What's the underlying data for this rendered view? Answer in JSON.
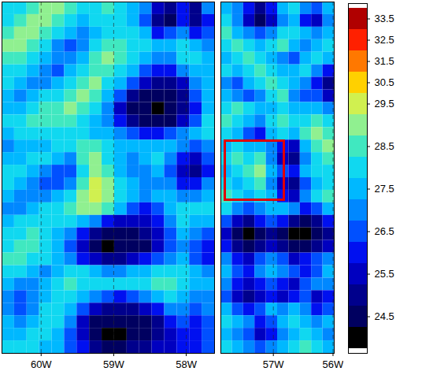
{
  "chart_data": {
    "type": "heatmap",
    "tick_labels": "x",
    "grid": true,
    "panels": [
      {
        "xlim": [
          -60.54,
          -57.61
        ],
        "xticks": [
          {
            "value": -60,
            "label": "60W"
          },
          {
            "value": -59,
            "label": "59W"
          },
          {
            "value": -58,
            "label": "58W"
          }
        ],
        "cells": [
          [
            28,
            28,
            28.5,
            29,
            29,
            28.5,
            28,
            28,
            28.5,
            28,
            27.5,
            27,
            25.5,
            25,
            26,
            25,
            27
          ],
          [
            28,
            28.5,
            29,
            29,
            28.5,
            28,
            27.5,
            28,
            28,
            28,
            27.5,
            26.5,
            25,
            24.5,
            26,
            25,
            26
          ],
          [
            28.5,
            29,
            29,
            28.5,
            28,
            27.5,
            27,
            27.5,
            28,
            28,
            28,
            27.5,
            26,
            26.5,
            27,
            26,
            26.5
          ],
          [
            29,
            29,
            28.5,
            28,
            27,
            26.5,
            27,
            28,
            28.5,
            28.5,
            28,
            28,
            27.5,
            27.5,
            28,
            27.5,
            27
          ],
          [
            28.5,
            28.5,
            28,
            27.5,
            27,
            27,
            27.5,
            28.5,
            29,
            28.5,
            28,
            27.5,
            27,
            27,
            28,
            28,
            27.5
          ],
          [
            28,
            28,
            27.5,
            27,
            26.5,
            27.5,
            28,
            28.5,
            28.5,
            28,
            27.5,
            26.5,
            26,
            26,
            27,
            27.5,
            27.5
          ],
          [
            28,
            27.5,
            27,
            27,
            27.5,
            28,
            28.5,
            29,
            28,
            27.5,
            26.5,
            25.5,
            25,
            25,
            25.5,
            27,
            27.5
          ],
          [
            27.5,
            27,
            27.5,
            28,
            28,
            28.5,
            29,
            28.5,
            27.5,
            26.5,
            25,
            24.5,
            24.5,
            24.5,
            25,
            26.5,
            27.5
          ],
          [
            27.5,
            27.5,
            28,
            28.5,
            28.5,
            29,
            28.5,
            28,
            27,
            25.5,
            24.5,
            24.5,
            24,
            24.5,
            25,
            26,
            27.5
          ],
          [
            28,
            28,
            28.5,
            28.5,
            28.5,
            28.5,
            28,
            27.5,
            27,
            26,
            25,
            24.5,
            24.5,
            24.5,
            25.5,
            26.5,
            28
          ],
          [
            27.5,
            28,
            28,
            28,
            28,
            28,
            28,
            27.5,
            27.5,
            27,
            26.5,
            26,
            26,
            26.5,
            27,
            27.5,
            28
          ],
          [
            27,
            27.5,
            27.5,
            27.5,
            28,
            28,
            28.5,
            28.5,
            28,
            27.5,
            27.5,
            27.5,
            27.5,
            27.5,
            27,
            26.5,
            27
          ],
          [
            27.5,
            27.5,
            28,
            28,
            27.5,
            27,
            28.5,
            29,
            28,
            27.5,
            27,
            27.5,
            28,
            27,
            26,
            25.5,
            26.5
          ],
          [
            28,
            28,
            27.5,
            27,
            26.5,
            26.5,
            28,
            29,
            28.5,
            27.5,
            27,
            27,
            27.5,
            26.5,
            25.5,
            25,
            26
          ],
          [
            28,
            27.5,
            27,
            26.5,
            26.5,
            27,
            28.5,
            29.5,
            29,
            28,
            27.5,
            27,
            27,
            27,
            26,
            26,
            27
          ],
          [
            27.5,
            27,
            27,
            27,
            27.5,
            28,
            29,
            29.5,
            29,
            28,
            27.5,
            27,
            27.5,
            27.5,
            27,
            27,
            27.5
          ],
          [
            27,
            27,
            27.5,
            28,
            28,
            28.5,
            29,
            29,
            28.5,
            27.5,
            26.5,
            26,
            26.5,
            27.5,
            28,
            28,
            28
          ],
          [
            27.5,
            28,
            28,
            28,
            28,
            28,
            27.5,
            27,
            26,
            25.5,
            25.5,
            25.5,
            26,
            27,
            28,
            27.5,
            27.5
          ],
          [
            28,
            28,
            28.5,
            28,
            27.5,
            27,
            26,
            25,
            24.5,
            24.5,
            24.5,
            25,
            25.5,
            26.5,
            27.5,
            27,
            26.5
          ],
          [
            28,
            28.5,
            28.5,
            28,
            27.5,
            26.5,
            25.5,
            24.5,
            24,
            24.5,
            24.5,
            24.5,
            25.5,
            26.5,
            27,
            26.5,
            26
          ],
          [
            28.5,
            28.5,
            28,
            28,
            27.5,
            27,
            26,
            25.5,
            25,
            25,
            25.5,
            26,
            26.5,
            27,
            27.5,
            26.5,
            26
          ],
          [
            28,
            28,
            27.5,
            27,
            27.5,
            28,
            28,
            27.5,
            27,
            27,
            27.5,
            27.5,
            28,
            28,
            28,
            27.5,
            27
          ],
          [
            27.5,
            27,
            27,
            27.5,
            28,
            28.5,
            28,
            28,
            28,
            28,
            28,
            28,
            28.5,
            28.5,
            28,
            27.5,
            27.5
          ],
          [
            27,
            26.5,
            27,
            27.5,
            28,
            28,
            27.5,
            27,
            26.5,
            26,
            26.5,
            27,
            27.5,
            28,
            27.5,
            27,
            27
          ],
          [
            27,
            26.5,
            27,
            28,
            28,
            27.5,
            26.5,
            25.5,
            25,
            25,
            25,
            25.5,
            26,
            27,
            27,
            26.5,
            27
          ],
          [
            27.5,
            27,
            27.5,
            28,
            28,
            27,
            25.5,
            24.5,
            24.5,
            24.5,
            24.5,
            24.5,
            25,
            26,
            26.5,
            26,
            26.5
          ],
          [
            27.5,
            27.5,
            28,
            28,
            27.5,
            26.5,
            25.5,
            24.5,
            24,
            24,
            24.5,
            24.5,
            25,
            25.5,
            26,
            26,
            26.5
          ],
          [
            28,
            28,
            28,
            27.5,
            27.5,
            26.5,
            26,
            25,
            24.5,
            24.5,
            25,
            25,
            25.5,
            25.5,
            26,
            26,
            26.5
          ]
        ]
      },
      {
        "xlim": [
          -57.88,
          -55.98
        ],
        "xticks": [
          {
            "value": -57,
            "label": "57W"
          },
          {
            "value": -56,
            "label": "56W"
          }
        ],
        "cells": [
          [
            27.5,
            27,
            26,
            25,
            26,
            27.5,
            28,
            27,
            26.5,
            27.5
          ],
          [
            28,
            27,
            25.5,
            24.5,
            25.5,
            27,
            27.5,
            26,
            25.5,
            27
          ],
          [
            28.5,
            27.5,
            27,
            26.5,
            27,
            28,
            28,
            27.5,
            27,
            27.5
          ],
          [
            28,
            28.5,
            28,
            27.5,
            28,
            28.5,
            27.5,
            27,
            27.5,
            28
          ],
          [
            27.5,
            28,
            28.5,
            28,
            27.5,
            27,
            26.5,
            27.5,
            28,
            27.5
          ],
          [
            28,
            27.5,
            28,
            28.5,
            28,
            27.5,
            27.5,
            28,
            27,
            26
          ],
          [
            27,
            26.5,
            27.5,
            28,
            28.5,
            28,
            27.5,
            27,
            26,
            25
          ],
          [
            27.5,
            27,
            26.5,
            27,
            28,
            28.5,
            27,
            26.5,
            26.5,
            25.5
          ],
          [
            28,
            28.5,
            28,
            27.5,
            27.5,
            28,
            27.5,
            27.5,
            27.5,
            27
          ],
          [
            28.5,
            28,
            27.5,
            27,
            28,
            28.5,
            28,
            28,
            28.5,
            28
          ],
          [
            28,
            27.5,
            26.5,
            26,
            27.5,
            28,
            27.5,
            28.5,
            29,
            28.5
          ],
          [
            27.5,
            28,
            27.5,
            27.5,
            27,
            26,
            25.5,
            27.5,
            28.5,
            29
          ],
          [
            28,
            28.5,
            28,
            28.5,
            27,
            25.5,
            25,
            27,
            28,
            28.5
          ],
          [
            27.5,
            28,
            28.5,
            29,
            27.5,
            26.5,
            26,
            27.5,
            28,
            28
          ],
          [
            28,
            27.5,
            28,
            28.5,
            27,
            25.5,
            25,
            26.5,
            27.5,
            28
          ],
          [
            28.5,
            28,
            27.5,
            28,
            27.5,
            26,
            25.5,
            27,
            28,
            28.5
          ],
          [
            28,
            27,
            26.5,
            27,
            27.5,
            27.5,
            27,
            26,
            26.5,
            27.5
          ],
          [
            26.5,
            25.5,
            25,
            26,
            26.5,
            26,
            25,
            24.5,
            25,
            26
          ],
          [
            25.5,
            24.5,
            24,
            24.5,
            25,
            24.5,
            24,
            24,
            24.5,
            25
          ],
          [
            26,
            25,
            24.5,
            25,
            25.5,
            25,
            24.5,
            24.5,
            25,
            25.5
          ],
          [
            27,
            26,
            25.5,
            26.5,
            27,
            26.5,
            25.5,
            26,
            26.5,
            27
          ],
          [
            27.5,
            26.5,
            26,
            27,
            27.5,
            27,
            26.5,
            26,
            26.5,
            27.5
          ],
          [
            27,
            26,
            25.5,
            26,
            26.5,
            26,
            25.5,
            26.5,
            27,
            27
          ],
          [
            26.5,
            25.5,
            25,
            25.5,
            26,
            25.5,
            26,
            26.5,
            25.5,
            26
          ],
          [
            27.5,
            26.5,
            26,
            26.5,
            27.5,
            27,
            27.5,
            27,
            26,
            26.5
          ],
          [
            28,
            27.5,
            27,
            26,
            26.5,
            27.5,
            28,
            27.5,
            27,
            27.5
          ],
          [
            27.5,
            27,
            26.5,
            25.5,
            26,
            27,
            27.5,
            28,
            27.5,
            27
          ],
          [
            28,
            27.5,
            27,
            26.5,
            27,
            27.5,
            28,
            28.5,
            28,
            27.5
          ]
        ]
      }
    ],
    "colorbar": {
      "levels": [
        24,
        24.5,
        25,
        25.5,
        26,
        26.5,
        27,
        27.5,
        28,
        28.5,
        29,
        29.5,
        30.5,
        31.5,
        32.5,
        33.5
      ],
      "colors": [
        "#000000",
        "#000060",
        "#00008c",
        "#0000c0",
        "#0010f0",
        "#0050ff",
        "#0088ff",
        "#00b8ff",
        "#10d8f0",
        "#40e8c0",
        "#90f090",
        "#d0f050",
        "#ffd000",
        "#ff7800",
        "#ff2000",
        "#b00000"
      ],
      "ticks": [
        24.5,
        25.5,
        26.5,
        27.5,
        28.5,
        29.5,
        30.5,
        31.5,
        32.5,
        33.5
      ]
    }
  }
}
